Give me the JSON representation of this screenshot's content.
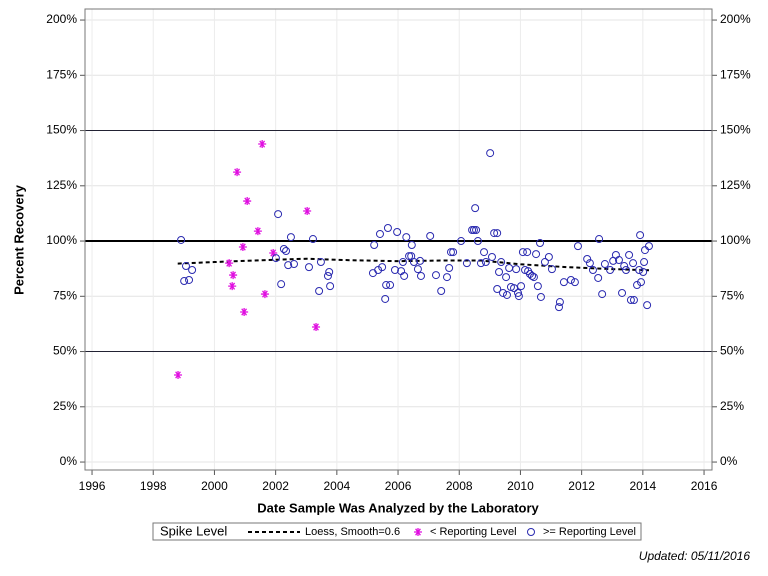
{
  "chart_data": {
    "type": "scatter",
    "x_label": "Date Sample Was Analyzed by the Laboratory",
    "y_label": "Percent Recovery",
    "footnote": "Updated: 05/11/2016",
    "legend_title": "Spike Level",
    "legend_position": "bottom",
    "grid": true,
    "right_axis": true,
    "xlim": [
      1995.77,
      2016.26
    ],
    "ylim": [
      -3.6,
      205
    ],
    "xticks": [
      1996,
      1998,
      2000,
      2002,
      2004,
      2006,
      2008,
      2010,
      2012,
      2014,
      2016
    ],
    "yticks": [
      {
        "value": 0,
        "label": "0%"
      },
      {
        "value": 25,
        "label": "25%"
      },
      {
        "value": 50,
        "label": "50%"
      },
      {
        "value": 75,
        "label": "75%"
      },
      {
        "value": 100,
        "label": "100%"
      },
      {
        "value": 125,
        "label": "125%"
      },
      {
        "value": 150,
        "label": "150%"
      },
      {
        "value": 175,
        "label": "175%"
      },
      {
        "value": 200,
        "label": "200%"
      }
    ],
    "reference_lines": [
      50,
      150
    ],
    "bold_reference_line": 100,
    "series": [
      {
        "name": "Loess, Smooth=0.6",
        "color": "#000000",
        "marker": "dashed-line",
        "x": [
          1998.8,
          2000,
          2001.5,
          2003,
          2004.5,
          2006,
          2007.5,
          2008.7,
          2010,
          2011.5,
          2013,
          2014.2
        ],
        "y": [
          89.8,
          90.5,
          91.3,
          92,
          91.3,
          90.9,
          91.2,
          91.2,
          89.5,
          88.2,
          87.3,
          86.8
        ]
      },
      {
        "name": "< Reporting Level",
        "color": "#e010e0",
        "marker": "star",
        "x": [
          1998.81,
          2000.48,
          2000.58,
          2000.61,
          2000.74,
          2000.93,
          2000.97,
          2001.07,
          2001.42,
          2001.56,
          2001.65,
          2001.92,
          2003.03,
          2003.32
        ],
        "y": [
          39.4,
          90,
          79.6,
          84.6,
          131.2,
          97.3,
          67.9,
          118.1,
          104.5,
          143.9,
          76,
          94.6,
          113.6,
          61.1
        ]
      },
      {
        "name": ">= Reporting Level",
        "color": "#2a2ab0",
        "marker": "circle",
        "x": [
          1998.91,
          1999.01,
          1999.07,
          1999.17,
          1999.27,
          2002.01,
          2002.08,
          2002.18,
          2002.27,
          2002.34,
          2002.41,
          2002.5,
          2002.6,
          2003.09,
          2003.22,
          2003.42,
          2003.48,
          2003.71,
          2003.75,
          2003.78,
          2005.18,
          2005.22,
          2005.35,
          2005.41,
          2005.48,
          2005.58,
          2005.61,
          2005.67,
          2005.74,
          2005.9,
          2005.97,
          2006.1,
          2006.16,
          2006.2,
          2006.27,
          2006.36,
          2006.43,
          2006.45,
          2006.52,
          2006.65,
          2006.72,
          2006.75,
          2007.05,
          2007.24,
          2007.41,
          2007.6,
          2007.67,
          2007.73,
          2007.8,
          2008.06,
          2008.25,
          2008.42,
          2008.48,
          2008.52,
          2008.55,
          2008.61,
          2008.71,
          2008.81,
          2008.87,
          2009.01,
          2009.07,
          2009.14,
          2009.24,
          2009.24,
          2009.3,
          2009.37,
          2009.43,
          2009.53,
          2009.56,
          2009.63,
          2009.69,
          2009.79,
          2009.86,
          2009.92,
          2009.95,
          2010.02,
          2010.08,
          2010.15,
          2010.22,
          2010.25,
          2010.31,
          2010.38,
          2010.44,
          2010.51,
          2010.57,
          2010.64,
          2010.67,
          2010.8,
          2010.93,
          2011.03,
          2011.26,
          2011.29,
          2011.42,
          2011.65,
          2011.78,
          2011.88,
          2012.18,
          2012.27,
          2012.37,
          2012.54,
          2012.57,
          2012.67,
          2012.76,
          2012.93,
          2013.03,
          2013.12,
          2013.22,
          2013.32,
          2013.39,
          2013.45,
          2013.55,
          2013.61,
          2013.68,
          2013.71,
          2013.81,
          2013.88,
          2013.91,
          2013.94,
          2014.01,
          2014.04,
          2014.07,
          2014.14,
          2014.2
        ],
        "y": [
          100.5,
          81.9,
          88.7,
          82.4,
          86.9,
          92.3,
          112.2,
          80.5,
          96.4,
          95.5,
          89.1,
          101.8,
          89.6,
          88.2,
          100.9,
          77.4,
          90.5,
          84.2,
          86,
          79.6,
          85.5,
          98.2,
          86.9,
          103.2,
          88.2,
          73.8,
          80.1,
          105.9,
          80.1,
          86.9,
          104.1,
          86.4,
          90.5,
          84.2,
          101.8,
          93.2,
          93.2,
          98.2,
          90.5,
          87.3,
          91,
          84.2,
          102.3,
          84.6,
          77.4,
          83.7,
          87.8,
          95,
          95,
          100,
          90,
          105,
          105,
          114.9,
          105,
          100,
          90,
          95,
          90.5,
          139.8,
          92.8,
          103.6,
          103.6,
          78.3,
          86,
          90.5,
          76.5,
          83.7,
          75.6,
          87.8,
          79.2,
          78.7,
          87.3,
          76.5,
          75.1,
          79.6,
          95,
          86.9,
          95,
          86.4,
          85.1,
          84.2,
          83.7,
          94.1,
          79.6,
          99.1,
          74.7,
          90.5,
          92.8,
          87.3,
          70.1,
          72.4,
          81.4,
          82.4,
          81.4,
          97.7,
          91.9,
          90,
          86.9,
          83.3,
          100.9,
          76,
          89.6,
          86.9,
          91,
          93.7,
          91.4,
          76.5,
          88.7,
          86.9,
          93.7,
          73.3,
          90,
          73.3,
          80.1,
          86.9,
          102.7,
          81.4,
          86,
          90.5,
          95.9,
          71,
          97.7
        ]
      }
    ]
  }
}
